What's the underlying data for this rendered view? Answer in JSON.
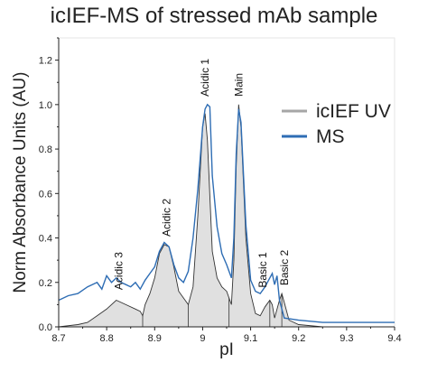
{
  "chart_data": {
    "type": "line",
    "title": "icIEF-MS of stressed mAb sample",
    "xlabel": "pI",
    "ylabel": "Norm Absorbance Units (AU)",
    "xlim": [
      8.7,
      9.4
    ],
    "ylim": [
      0.0,
      1.3
    ],
    "xticks": [
      "8.7",
      "8.8",
      "8.9",
      "9",
      "9.1",
      "9.2",
      "9.3",
      "9.4"
    ],
    "yticks": [
      "0.0",
      "0.2",
      "0.4",
      "0.6",
      "0.8",
      "1.0",
      "1.2"
    ],
    "grid": false,
    "legend_position": "right",
    "series": [
      {
        "name": "icIEF UV",
        "color": "#a6a6a6",
        "fill": "#e0e0e0",
        "x": [
          8.7,
          8.74,
          8.76,
          8.78,
          8.8,
          8.82,
          8.84,
          8.86,
          8.87,
          8.875,
          8.88,
          8.89,
          8.9,
          8.91,
          8.92,
          8.93,
          8.94,
          8.95,
          8.96,
          8.97,
          8.98,
          8.99,
          9.0,
          9.005,
          9.01,
          9.02,
          9.03,
          9.04,
          9.05,
          9.06,
          9.065,
          9.07,
          9.075,
          9.08,
          9.09,
          9.1,
          9.11,
          9.12,
          9.13,
          9.14,
          9.145,
          9.15,
          9.16,
          9.165,
          9.17,
          9.18,
          9.2,
          9.25,
          9.3,
          9.35,
          9.4
        ],
        "y": [
          0.0,
          0.01,
          0.02,
          0.05,
          0.08,
          0.12,
          0.1,
          0.08,
          0.07,
          0.05,
          0.1,
          0.15,
          0.22,
          0.33,
          0.37,
          0.36,
          0.27,
          0.16,
          0.13,
          0.1,
          0.18,
          0.5,
          0.9,
          0.96,
          0.84,
          0.34,
          0.22,
          0.18,
          0.16,
          0.1,
          0.3,
          0.72,
          1.0,
          0.9,
          0.4,
          0.15,
          0.06,
          0.05,
          0.09,
          0.12,
          0.1,
          0.04,
          0.12,
          0.15,
          0.11,
          0.03,
          0.01,
          0.0,
          0.0,
          0.0,
          0.0
        ]
      },
      {
        "name": "MS",
        "color": "#2e6db4",
        "x": [
          8.7,
          8.72,
          8.74,
          8.76,
          8.78,
          8.79,
          8.8,
          8.81,
          8.82,
          8.83,
          8.84,
          8.85,
          8.86,
          8.87,
          8.88,
          8.89,
          8.9,
          8.91,
          8.92,
          8.93,
          8.94,
          8.95,
          8.96,
          8.97,
          8.98,
          8.99,
          9.0,
          9.005,
          9.01,
          9.015,
          9.02,
          9.03,
          9.04,
          9.05,
          9.06,
          9.065,
          9.07,
          9.075,
          9.08,
          9.09,
          9.1,
          9.11,
          9.12,
          9.13,
          9.14,
          9.145,
          9.15,
          9.155,
          9.16,
          9.17,
          9.2,
          9.25,
          9.3,
          9.35,
          9.4
        ],
        "y": [
          0.12,
          0.14,
          0.15,
          0.18,
          0.2,
          0.17,
          0.23,
          0.2,
          0.22,
          0.2,
          0.19,
          0.18,
          0.2,
          0.17,
          0.21,
          0.24,
          0.27,
          0.34,
          0.38,
          0.36,
          0.28,
          0.22,
          0.2,
          0.25,
          0.4,
          0.62,
          0.9,
          0.98,
          1.0,
          0.99,
          0.68,
          0.45,
          0.33,
          0.28,
          0.22,
          0.4,
          0.78,
          0.98,
          0.92,
          0.46,
          0.21,
          0.16,
          0.15,
          0.18,
          0.22,
          0.24,
          0.19,
          0.23,
          0.12,
          0.04,
          0.03,
          0.02,
          0.02,
          0.02,
          0.02
        ]
      }
    ],
    "peak_dividers": [
      8.875,
      8.97,
      9.055,
      9.14,
      9.165
    ],
    "annotations": [
      {
        "text": "Acidic 3",
        "x": 8.825,
        "y": 0.15
      },
      {
        "text": "Acidic 2",
        "x": 8.925,
        "y": 0.39
      },
      {
        "text": "Acidic 1",
        "x": 9.005,
        "y": 1.02
      },
      {
        "text": "Main",
        "x": 9.075,
        "y": 1.02
      },
      {
        "text": "Basic 1",
        "x": 9.125,
        "y": 0.16
      },
      {
        "text": "Basic 2",
        "x": 9.17,
        "y": 0.17
      }
    ]
  }
}
